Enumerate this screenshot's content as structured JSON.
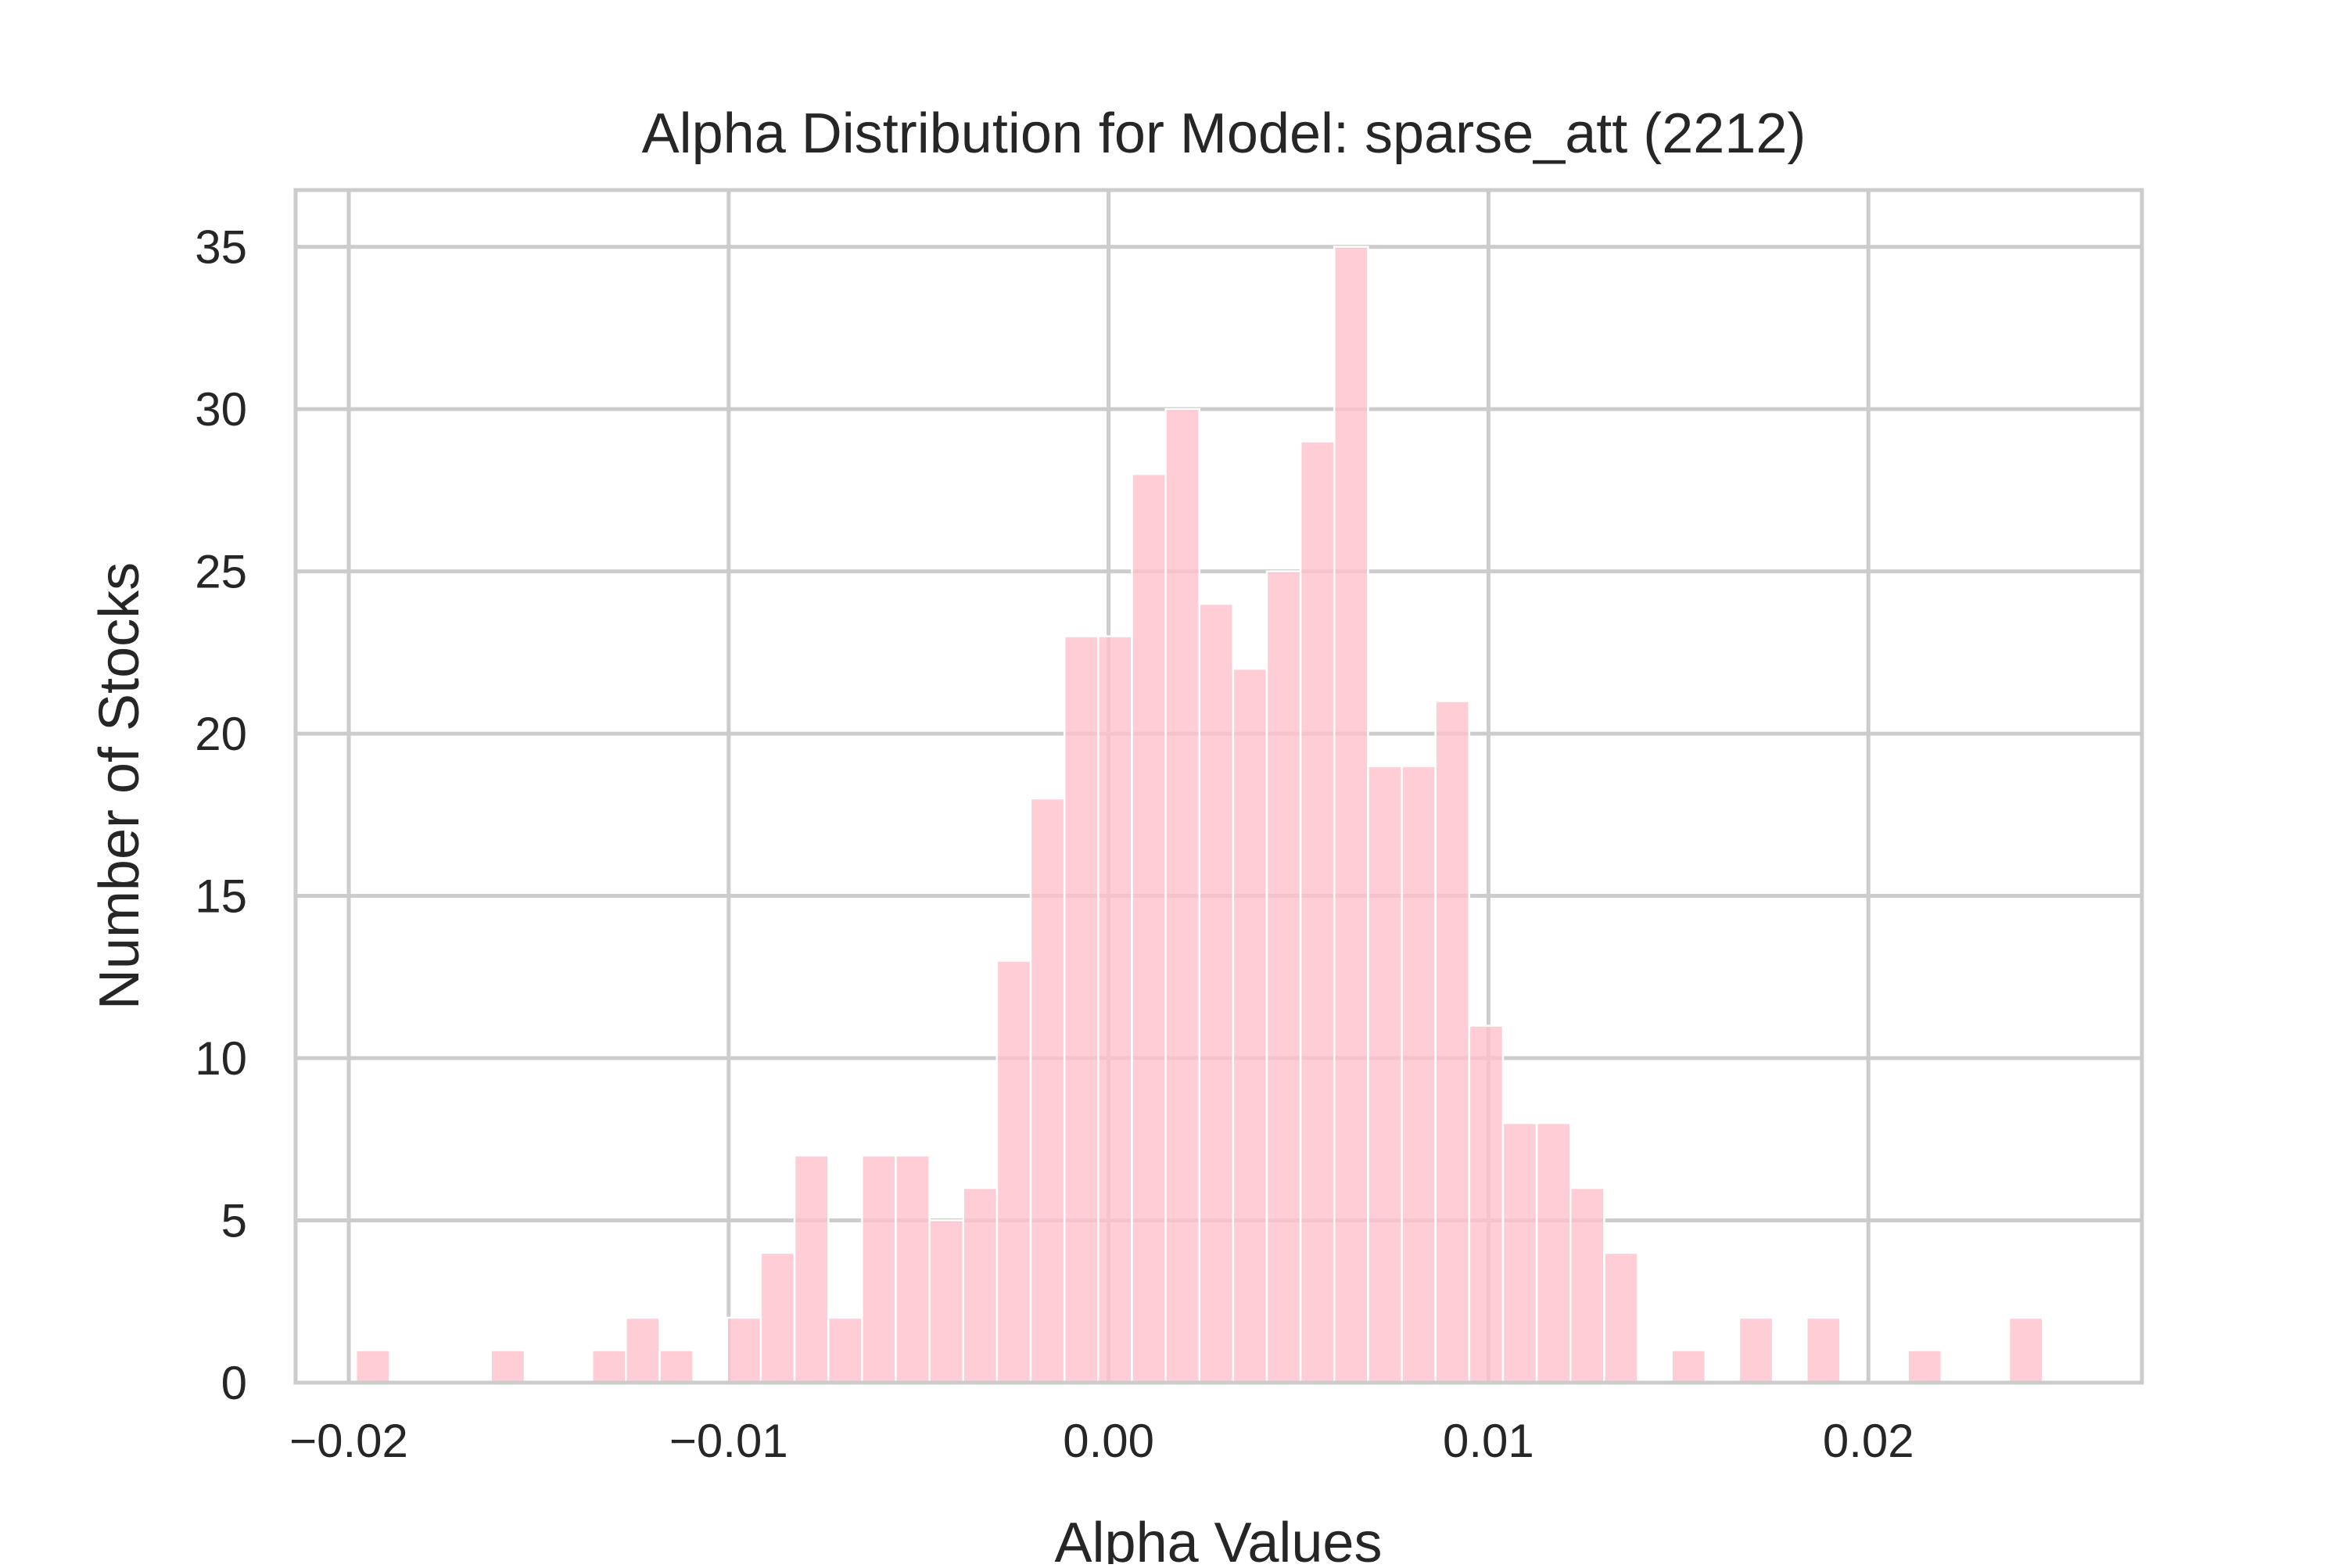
{
  "chart_data": {
    "type": "bar",
    "subtype": "histogram",
    "title": "Alpha Distribution for Model: sparse_att (2212)",
    "xlabel": "Alpha Values",
    "ylabel": "Number of Stocks",
    "xlim": [
      -0.0214,
      0.0272
    ],
    "ylim": [
      0,
      36.75
    ],
    "grid": true,
    "bar_color": "#ffc0cb",
    "bar_opacity": 0.8,
    "grid_color": "#cccccc",
    "text_color": "#262626",
    "bin_start": -0.01981,
    "bin_width": 0.000888,
    "counts": [
      1,
      0,
      0,
      0,
      1,
      0,
      0,
      1,
      2,
      1,
      0,
      2,
      4,
      7,
      2,
      7,
      7,
      5,
      6,
      13,
      18,
      23,
      23,
      28,
      30,
      24,
      22,
      25,
      29,
      35,
      19,
      19,
      21,
      11,
      8,
      8,
      6,
      4,
      0,
      1,
      0,
      2,
      0,
      2,
      0,
      0,
      1,
      0,
      0,
      2
    ],
    "x_ticks": [
      {
        "value": -0.02,
        "label": "−0.02"
      },
      {
        "value": -0.01,
        "label": "−0.01"
      },
      {
        "value": 0.0,
        "label": "0.00"
      },
      {
        "value": 0.01,
        "label": "0.01"
      },
      {
        "value": 0.02,
        "label": "0.02"
      }
    ],
    "y_ticks": [
      {
        "value": 0,
        "label": "0"
      },
      {
        "value": 5,
        "label": "5"
      },
      {
        "value": 10,
        "label": "10"
      },
      {
        "value": 15,
        "label": "15"
      },
      {
        "value": 20,
        "label": "20"
      },
      {
        "value": 25,
        "label": "25"
      },
      {
        "value": 30,
        "label": "30"
      },
      {
        "value": 35,
        "label": "35"
      }
    ]
  }
}
